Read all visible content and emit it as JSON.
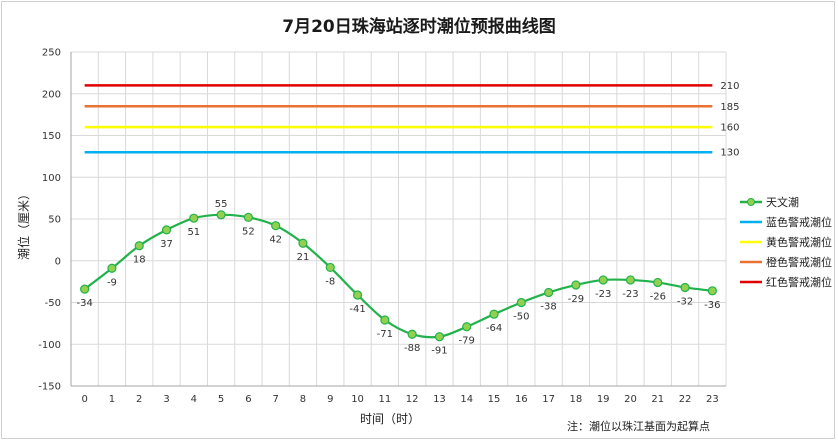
{
  "chart_data": {
    "type": "line",
    "title": "7月20日珠海站逐时潮位预报曲线图",
    "xlabel": "时间（时）",
    "ylabel": "潮位（厘米）",
    "note": "注：潮位以珠江基面为起算点",
    "ylim": [
      -150,
      250
    ],
    "yticks": [
      -150,
      -100,
      -50,
      0,
      50,
      100,
      150,
      200,
      250
    ],
    "xlim": [
      0,
      23
    ],
    "x": [
      0,
      1,
      2,
      3,
      4,
      5,
      6,
      7,
      8,
      9,
      10,
      11,
      12,
      13,
      14,
      15,
      16,
      17,
      18,
      19,
      20,
      21,
      22,
      23
    ],
    "grid": true,
    "legend_position": "right",
    "series": [
      {
        "name": "天文潮",
        "color": "#21b24b",
        "marker_color": "#92d050",
        "values": [
          -34,
          -9,
          18,
          37,
          51,
          55,
          52,
          42,
          21,
          -8,
          -41,
          -71,
          -88,
          -91,
          -79,
          -64,
          -50,
          -38,
          -29,
          -23,
          -23,
          -26,
          -32,
          -36
        ]
      },
      {
        "name": "蓝色警戒潮位",
        "color": "#00b0f0",
        "level": 130
      },
      {
        "name": "黄色警戒潮位",
        "color": "#ffff00",
        "level": 160
      },
      {
        "name": "橙色警戒潮位",
        "color": "#e97132",
        "level": 185
      },
      {
        "name": "红色警戒潮位",
        "color": "#e00000",
        "level": 210
      }
    ]
  }
}
